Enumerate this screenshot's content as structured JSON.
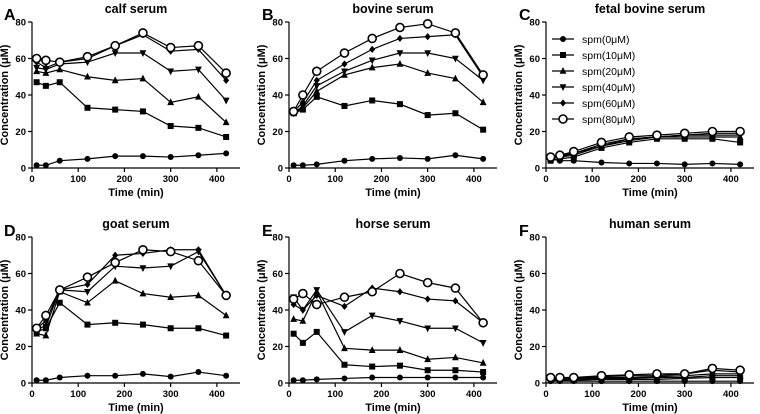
{
  "figure": {
    "background": "#ffffff",
    "line_color": "#000000"
  },
  "legend": {
    "entries": [
      {
        "label": "spm(0μM)",
        "marker": "circle"
      },
      {
        "label": "spm(10μM)",
        "marker": "square"
      },
      {
        "label": "spm(20μM)",
        "marker": "triangle-up"
      },
      {
        "label": "spm(40μM)",
        "marker": "triangle-down"
      },
      {
        "label": "spm(60μM)",
        "marker": "diamond"
      },
      {
        "label": "spm(80μM)",
        "marker": "open-circle"
      }
    ]
  },
  "chart_data": [
    {
      "type": "line",
      "letter": "A",
      "title": "calf serum",
      "xlabel": "Time (min)",
      "ylabel": "Concentration (μM)",
      "xlim": [
        0,
        450
      ],
      "ylim": [
        0,
        80
      ],
      "xticks": [
        0,
        100,
        200,
        300,
        400
      ],
      "yticks": [
        0,
        20,
        40,
        60,
        80
      ],
      "x": [
        10,
        30,
        60,
        120,
        180,
        240,
        300,
        360,
        420
      ],
      "series": [
        {
          "name": "spm(0μM)",
          "marker": "circle",
          "values": [
            1.5,
            1.5,
            4,
            5,
            6.5,
            6.5,
            6,
            7,
            8
          ]
        },
        {
          "name": "spm(10μM)",
          "marker": "square",
          "values": [
            47,
            45,
            47,
            33,
            32,
            31,
            23,
            22,
            17
          ]
        },
        {
          "name": "spm(20μM)",
          "marker": "triangle-up",
          "values": [
            53,
            52,
            54,
            50,
            48,
            49,
            36,
            39,
            25
          ]
        },
        {
          "name": "spm(40μM)",
          "marker": "triangle-down",
          "values": [
            55,
            54,
            57,
            58,
            63,
            63,
            53,
            54,
            37
          ]
        },
        {
          "name": "spm(60μM)",
          "marker": "diamond",
          "values": [
            58,
            55,
            58,
            60,
            67,
            73,
            64,
            65,
            48
          ]
        },
        {
          "name": "spm(80μM)",
          "marker": "open-circle",
          "values": [
            60,
            59,
            58,
            61,
            67,
            74,
            66,
            67,
            52
          ]
        }
      ]
    },
    {
      "type": "line",
      "letter": "B",
      "title": "bovine serum",
      "xlabel": "Time (min)",
      "ylabel": "Concentration (μM)",
      "xlim": [
        0,
        450
      ],
      "ylim": [
        0,
        80
      ],
      "xticks": [
        0,
        100,
        200,
        300,
        400
      ],
      "yticks": [
        0,
        20,
        40,
        60,
        80
      ],
      "x": [
        10,
        30,
        60,
        120,
        180,
        240,
        300,
        360,
        420
      ],
      "series": [
        {
          "name": "spm(0μM)",
          "marker": "circle",
          "values": [
            1.5,
            1.5,
            2,
            4,
            5,
            5.5,
            5,
            7,
            5
          ]
        },
        {
          "name": "spm(10μM)",
          "marker": "square",
          "values": [
            30,
            32,
            39,
            34,
            37,
            35,
            29,
            30,
            21
          ]
        },
        {
          "name": "spm(20μM)",
          "marker": "triangle-up",
          "values": [
            30,
            33,
            42,
            51,
            55,
            57,
            52,
            49,
            36
          ]
        },
        {
          "name": "spm(40μM)",
          "marker": "triangle-down",
          "values": [
            30,
            34,
            45,
            53,
            59,
            63,
            63,
            60,
            48
          ]
        },
        {
          "name": "spm(60μM)",
          "marker": "diamond",
          "values": [
            31,
            36,
            48,
            57,
            65,
            71,
            72,
            73,
            50
          ]
        },
        {
          "name": "spm(80μM)",
          "marker": "open-circle",
          "values": [
            31,
            40,
            53,
            63,
            71,
            77,
            79,
            74,
            51
          ]
        }
      ]
    },
    {
      "type": "line",
      "letter": "C",
      "title": "fetal bovine serum",
      "xlabel": "Time (min)",
      "ylabel": "Concentration (μM)",
      "xlim": [
        0,
        450
      ],
      "ylim": [
        0,
        80
      ],
      "xticks": [
        0,
        100,
        200,
        300,
        400
      ],
      "yticks": [
        0,
        20,
        40,
        60,
        80
      ],
      "x": [
        10,
        30,
        60,
        120,
        180,
        240,
        300,
        360,
        420
      ],
      "series": [
        {
          "name": "spm(0μM)",
          "marker": "circle",
          "values": [
            5,
            4,
            4,
            3,
            2.5,
            2.5,
            2,
            2.5,
            2
          ]
        },
        {
          "name": "spm(10μM)",
          "marker": "square",
          "values": [
            4,
            5,
            6,
            11,
            14,
            16,
            16,
            16,
            14
          ]
        },
        {
          "name": "spm(20μM)",
          "marker": "triangle-up",
          "values": [
            5,
            6,
            7,
            12,
            15,
            17,
            17,
            17,
            17
          ]
        },
        {
          "name": "spm(40μM)",
          "marker": "triangle-down",
          "values": [
            5,
            6,
            8,
            12,
            16,
            17,
            18,
            18,
            18
          ]
        },
        {
          "name": "spm(60μM)",
          "marker": "diamond",
          "values": [
            6,
            7,
            8,
            13,
            16,
            17,
            18,
            19,
            19
          ]
        },
        {
          "name": "spm(80μM)",
          "marker": "open-circle",
          "values": [
            6,
            7,
            9,
            14,
            17,
            18,
            19,
            20,
            20
          ]
        }
      ]
    },
    {
      "type": "line",
      "letter": "D",
      "title": "goat serum",
      "xlabel": "Time (min)",
      "ylabel": "Concentration (μM)",
      "xlim": [
        0,
        450
      ],
      "ylim": [
        0,
        80
      ],
      "xticks": [
        0,
        100,
        200,
        300,
        400
      ],
      "yticks": [
        0,
        20,
        40,
        60,
        80
      ],
      "x": [
        10,
        30,
        60,
        120,
        180,
        240,
        300,
        360,
        420
      ],
      "series": [
        {
          "name": "spm(0μM)",
          "marker": "circle",
          "values": [
            1.5,
            1.5,
            3,
            4,
            4,
            5,
            3.5,
            6,
            4
          ]
        },
        {
          "name": "spm(10μM)",
          "marker": "square",
          "values": [
            28,
            30,
            44,
            32,
            33,
            32,
            30,
            30,
            26
          ]
        },
        {
          "name": "spm(20μM)",
          "marker": "triangle-up",
          "values": [
            27,
            26,
            50,
            44,
            56,
            49,
            47,
            48,
            37
          ]
        },
        {
          "name": "spm(40μM)",
          "marker": "triangle-down",
          "values": [
            30,
            31,
            51,
            50,
            64,
            63,
            64,
            72,
            48
          ]
        },
        {
          "name": "spm(60μM)",
          "marker": "diamond",
          "values": [
            30,
            34,
            51,
            54,
            70,
            71,
            73,
            73,
            48
          ]
        },
        {
          "name": "spm(80μM)",
          "marker": "open-circle",
          "values": [
            30,
            37,
            51,
            58,
            66,
            73,
            72,
            67,
            48
          ]
        }
      ]
    },
    {
      "type": "line",
      "letter": "E",
      "title": "horse serum",
      "xlabel": "Time (min)",
      "ylabel": "Concentration (μM)",
      "xlim": [
        0,
        450
      ],
      "ylim": [
        0,
        80
      ],
      "xticks": [
        0,
        100,
        200,
        300,
        400
      ],
      "yticks": [
        0,
        20,
        40,
        60,
        80
      ],
      "x": [
        10,
        30,
        60,
        120,
        180,
        240,
        300,
        360,
        420
      ],
      "series": [
        {
          "name": "spm(0μM)",
          "marker": "circle",
          "values": [
            1.5,
            1.5,
            2,
            2.5,
            3,
            3,
            3,
            3,
            3
          ]
        },
        {
          "name": "spm(10μM)",
          "marker": "square",
          "values": [
            27,
            22,
            28,
            10,
            9,
            9.5,
            7,
            7,
            6
          ]
        },
        {
          "name": "spm(20μM)",
          "marker": "triangle-up",
          "values": [
            35,
            34,
            50,
            19,
            18,
            18,
            13,
            14,
            11
          ]
        },
        {
          "name": "spm(40μM)",
          "marker": "triangle-down",
          "values": [
            47,
            40,
            51,
            28,
            37,
            34,
            30,
            30,
            22
          ]
        },
        {
          "name": "spm(60μM)",
          "marker": "diamond",
          "values": [
            43,
            40,
            48,
            42,
            52,
            50,
            46,
            45,
            33
          ]
        },
        {
          "name": "spm(80μM)",
          "marker": "open-circle",
          "values": [
            46,
            49,
            43,
            47,
            50,
            60,
            55,
            52,
            33
          ]
        }
      ]
    },
    {
      "type": "line",
      "letter": "F",
      "title": "human serum",
      "xlabel": "Time (min)",
      "ylabel": "Concentration (μM)",
      "xlim": [
        0,
        450
      ],
      "ylim": [
        0,
        80
      ],
      "xticks": [
        0,
        100,
        200,
        300,
        400
      ],
      "yticks": [
        0,
        20,
        40,
        60,
        80
      ],
      "x": [
        10,
        30,
        60,
        120,
        180,
        240,
        300,
        360,
        420
      ],
      "series": [
        {
          "name": "spm(0μM)",
          "marker": "circle",
          "values": [
            1,
            1,
            1,
            1,
            1,
            1,
            1,
            1,
            1
          ]
        },
        {
          "name": "spm(10μM)",
          "marker": "square",
          "values": [
            1.5,
            1.5,
            1.5,
            2,
            2,
            2,
            2.5,
            3,
            3
          ]
        },
        {
          "name": "spm(20μM)",
          "marker": "triangle-up",
          "values": [
            1.5,
            2,
            2,
            2.5,
            2.5,
            3,
            3,
            4,
            4
          ]
        },
        {
          "name": "spm(40μM)",
          "marker": "triangle-down",
          "values": [
            2,
            2,
            2.5,
            3,
            3,
            3.5,
            4,
            5,
            5
          ]
        },
        {
          "name": "spm(60μM)",
          "marker": "diamond",
          "values": [
            2.5,
            2.5,
            3,
            3.5,
            4,
            4,
            5,
            7,
            6
          ]
        },
        {
          "name": "spm(80μM)",
          "marker": "open-circle",
          "values": [
            3,
            3,
            3,
            4,
            4.5,
            5,
            5,
            8,
            7
          ]
        }
      ]
    }
  ]
}
